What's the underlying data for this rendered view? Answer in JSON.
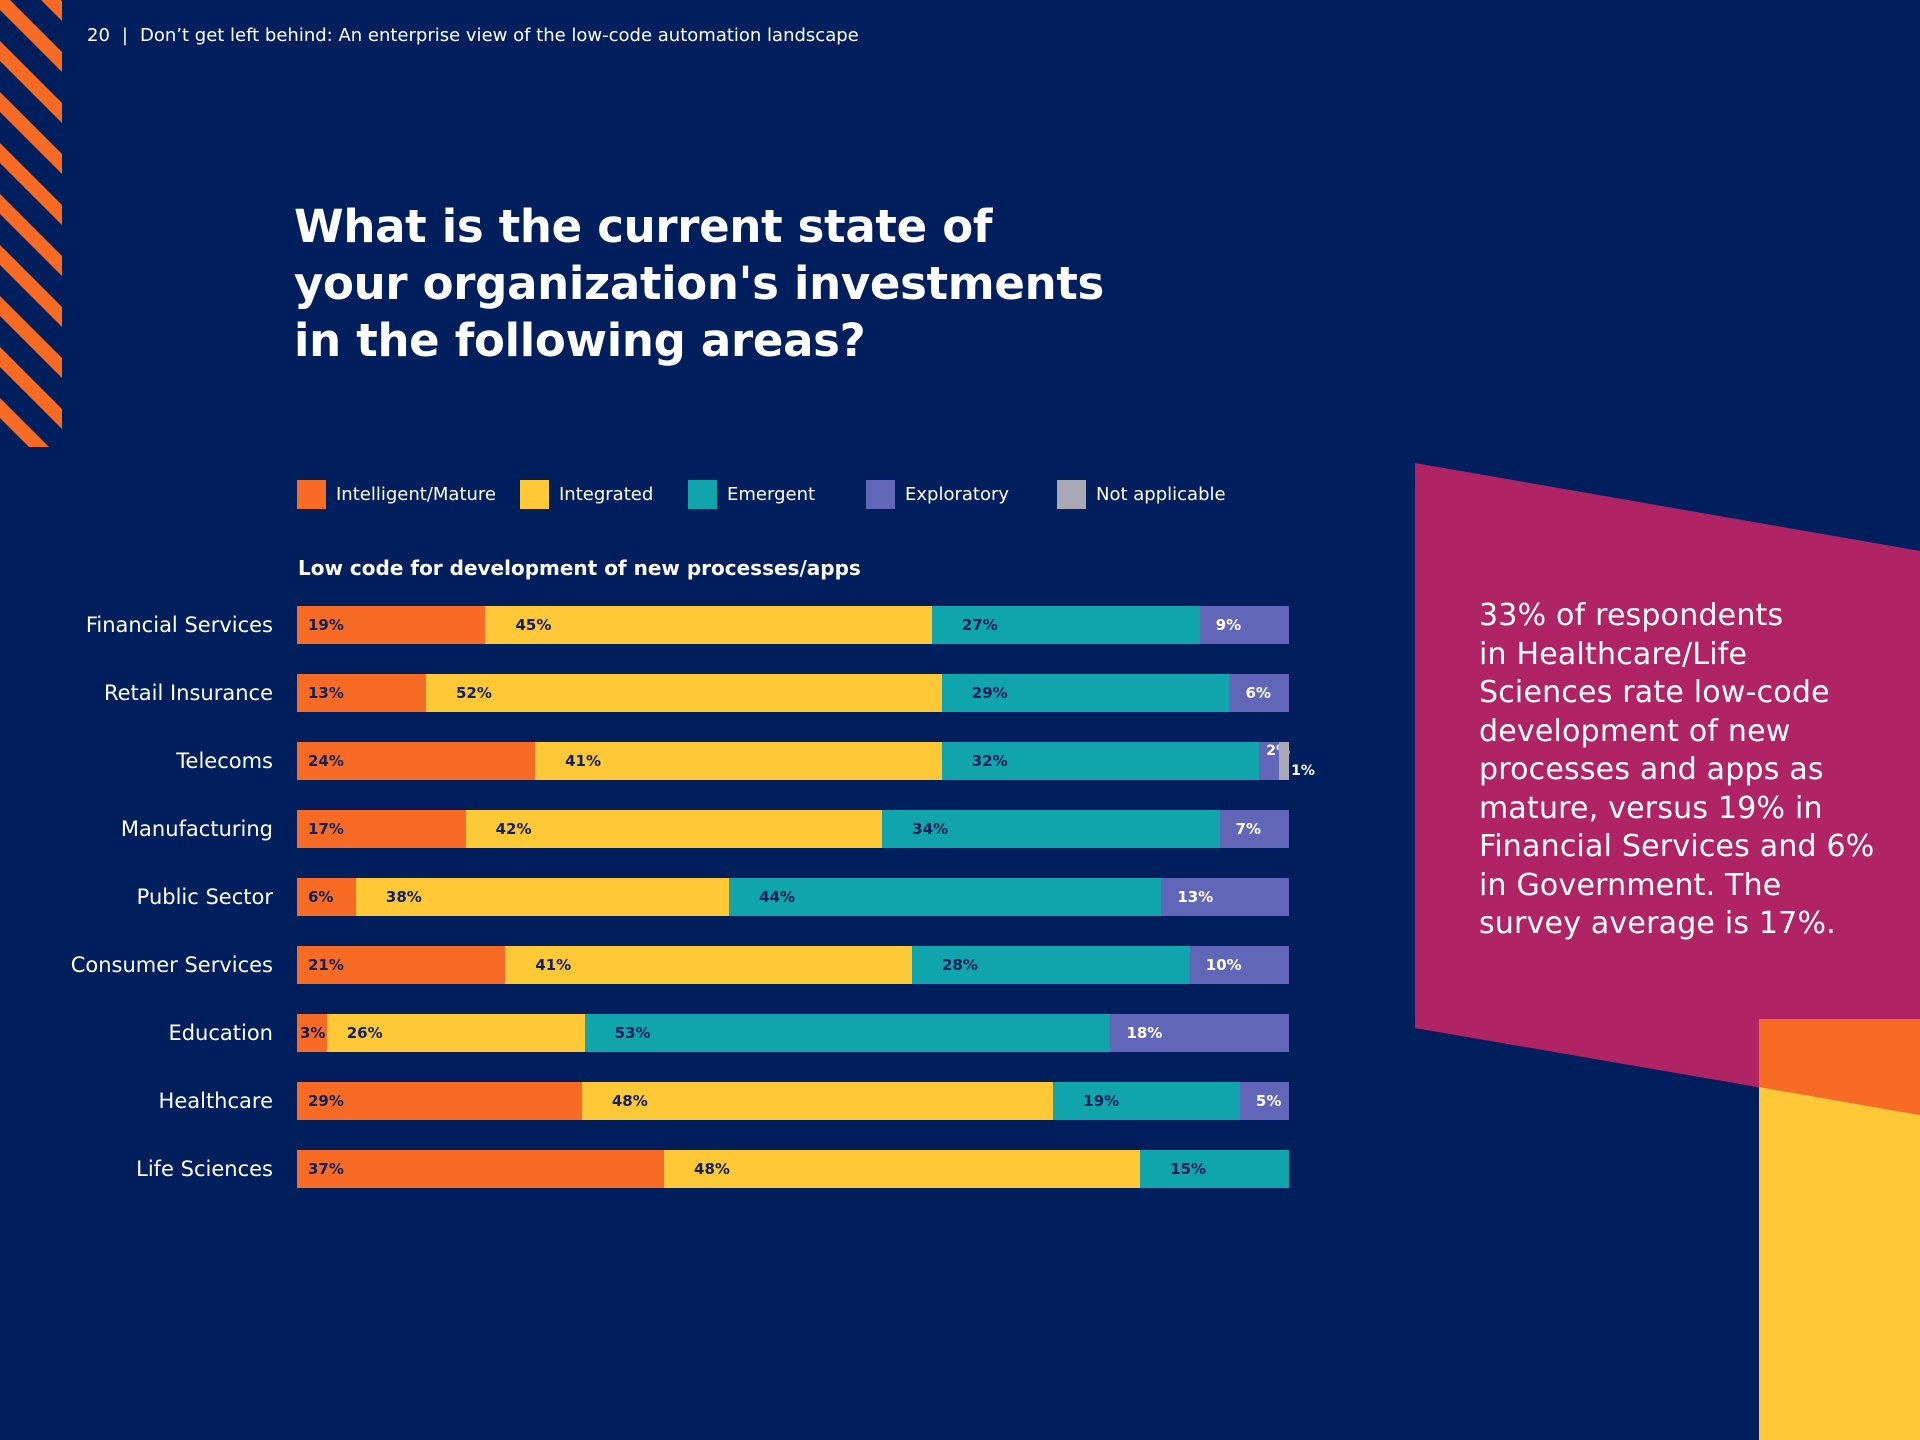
{
  "header": {
    "page_number": "20",
    "separator": "|",
    "document_title": "Don’t get left behind: An enterprise view of the low-code automation landscape"
  },
  "title_lines": [
    "What is the current state of",
    "your organization's investments",
    "in the following areas?"
  ],
  "colors": {
    "background": "#001f5c",
    "stripe": "#f76b24",
    "magenta": "#b02466",
    "orange": "#f76b24",
    "yellow": "#ffc836",
    "label_dark": "#0f1f5c",
    "label_light": "#ffffff"
  },
  "callout": {
    "lines": [
      "33% of respondents",
      "in Healthcare/Life",
      "Sciences rate low-code",
      "development of new",
      "processes and apps as",
      "mature, versus 19% in",
      "Financial Services and 6%",
      "in Government. The",
      "survey average is 17%."
    ]
  },
  "chart_data": {
    "type": "bar",
    "orientation": "horizontal",
    "stacked": true,
    "title": "Low code for development of new processes/apps",
    "xlabel": "",
    "ylabel": "",
    "xlim": [
      0,
      100
    ],
    "grid": false,
    "legend_position": "top",
    "categories": [
      "Financial Services",
      "Retail Insurance",
      "Telecoms",
      "Manufacturing",
      "Public Sector",
      "Consumer Services",
      "Education",
      "Healthcare",
      "Life Sciences"
    ],
    "series": [
      {
        "name": "Intelligent/Mature",
        "color": "#f76b24",
        "label_color": "#0f1f5c",
        "values": [
          19,
          13,
          24,
          17,
          6,
          21,
          3,
          29,
          37
        ]
      },
      {
        "name": "Integrated",
        "color": "#ffc836",
        "label_color": "#0f1f5c",
        "values": [
          45,
          52,
          41,
          42,
          38,
          41,
          26,
          48,
          48
        ]
      },
      {
        "name": "Emergent",
        "color": "#10a5ac",
        "label_color": "#0f1f5c",
        "values": [
          27,
          29,
          32,
          34,
          44,
          28,
          53,
          19,
          15
        ]
      },
      {
        "name": "Exploratory",
        "color": "#6266b8",
        "label_color": "#ffffff",
        "values": [
          9,
          6,
          2,
          7,
          13,
          10,
          18,
          5,
          0
        ]
      },
      {
        "name": "Not applicable",
        "color": "#a8a9b4",
        "label_color": "#ffffff",
        "values": [
          0,
          0,
          1,
          0,
          0,
          0,
          0,
          0,
          0
        ]
      }
    ],
    "value_suffix": "%"
  }
}
